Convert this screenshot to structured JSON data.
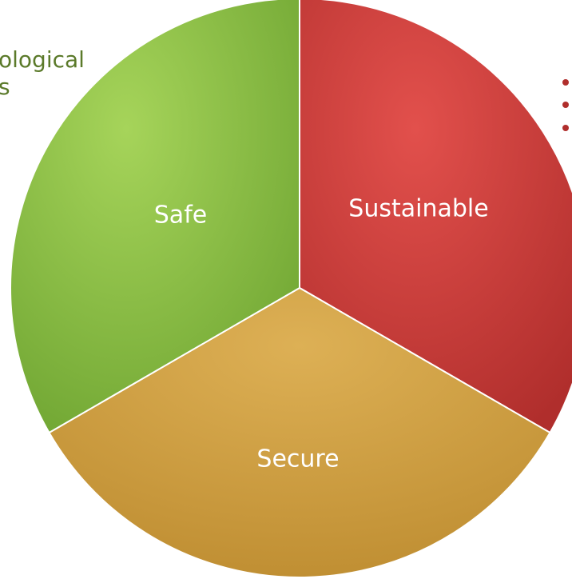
{
  "left_text": [
    "ological",
    "s"
  ],
  "segments": [
    {
      "label": "Safe"
    },
    {
      "label": "Sustainable"
    },
    {
      "label": "Secure"
    }
  ]
}
